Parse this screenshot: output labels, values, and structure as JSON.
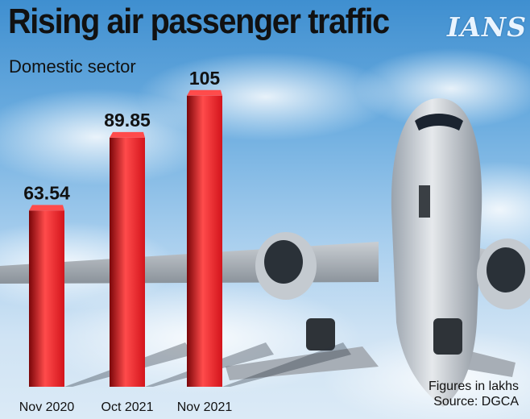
{
  "header": {
    "title": "Rising air passenger traffic",
    "subtitle": "Domestic sector",
    "brand": "IANS"
  },
  "footer": {
    "units_note": "Figures in lakhs",
    "source": "Source: DGCA"
  },
  "colors": {
    "bar": "#d3141c",
    "bar_dark": "#7a0609",
    "bar_light": "#ff4b4b"
  },
  "chart_data": {
    "type": "bar",
    "title": "Rising air passenger traffic",
    "subtitle": "Domestic sector",
    "categories": [
      "Nov 2020",
      "Oct 2021",
      "Nov 2021"
    ],
    "values": [
      63.54,
      89.85,
      105
    ],
    "value_labels": [
      "63.54",
      "89.85",
      "105"
    ],
    "ylabel": "Figures in lakhs",
    "ylim": [
      0,
      110
    ],
    "grid": false,
    "legend": "none"
  }
}
